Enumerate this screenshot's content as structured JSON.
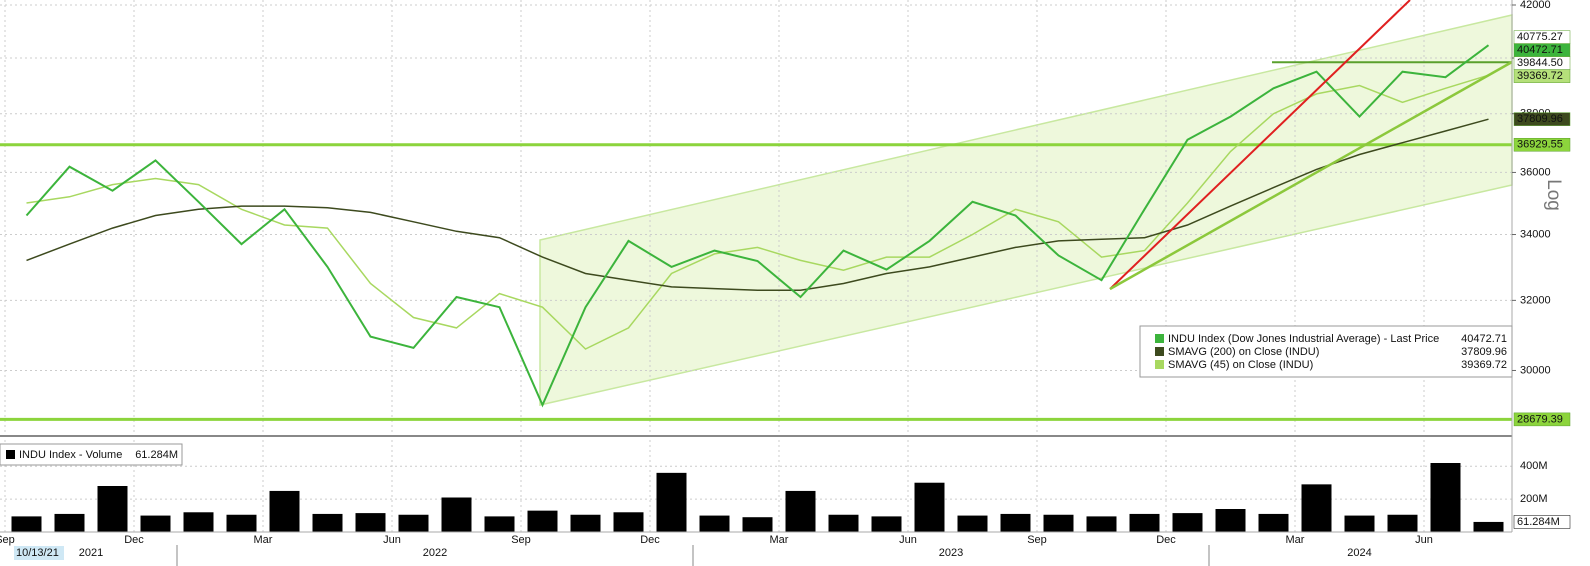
{
  "chart_data": [
    {
      "type": "line",
      "log_scale": true,
      "grid": true,
      "x": [
        "2021-09",
        "2021-10",
        "2021-11",
        "2021-12",
        "2022-01",
        "2022-02",
        "2022-03",
        "2022-04",
        "2022-05",
        "2022-06",
        "2022-07",
        "2022-08",
        "2022-09",
        "2022-10",
        "2022-11",
        "2022-12",
        "2023-01",
        "2023-02",
        "2023-03",
        "2023-04",
        "2023-05",
        "2023-06",
        "2023-07",
        "2023-08",
        "2023-09",
        "2023-10",
        "2023-11",
        "2023-12",
        "2024-01",
        "2024-02",
        "2024-03",
        "2024-04",
        "2024-05",
        "2024-06",
        "2024-07"
      ],
      "series": [
        {
          "name": "INDU Index (Dow Jones Industrial Average) - Last Price",
          "color": "#3cb43c",
          "label_bg": "#3cb43c",
          "label_fg": "#000000",
          "values": [
            34600,
            36190,
            35400,
            36400,
            35040,
            33700,
            34800,
            33000,
            30950,
            30630,
            32100,
            31800,
            29060,
            31800,
            33800,
            33000,
            33500,
            33180,
            32100,
            33500,
            32920,
            33800,
            35040,
            34600,
            33350,
            32600,
            34800,
            37100,
            37900,
            38900,
            39500,
            37900,
            39500,
            39300,
            40472.71
          ]
        },
        {
          "name": "SMAVG (200)  on Close (INDU)",
          "color": "#3d4a1e",
          "label_bg": "#3d4a1e",
          "label_fg": "#ffffff",
          "values": [
            33200,
            33700,
            34200,
            34600,
            34800,
            34900,
            34900,
            34850,
            34700,
            34400,
            34100,
            33900,
            33300,
            32800,
            32600,
            32400,
            32350,
            32300,
            32300,
            32500,
            32800,
            33000,
            33300,
            33600,
            33800,
            33850,
            33900,
            34300,
            34900,
            35500,
            36100,
            36600,
            37000,
            37400,
            37809.96
          ]
        },
        {
          "name": "SMAVG (45)  on Close (INDU)",
          "color": "#a8d860",
          "label_bg": "#b5e07a",
          "label_fg": "#000000",
          "values": [
            35000,
            35200,
            35600,
            35800,
            35600,
            34800,
            34300,
            34200,
            32500,
            31500,
            31200,
            32200,
            31800,
            30600,
            31200,
            32800,
            33400,
            33600,
            33200,
            32900,
            33300,
            33300,
            34000,
            34800,
            34400,
            33300,
            33500,
            35000,
            36700,
            38000,
            38700,
            39000,
            38400,
            38900,
            39369.72
          ]
        }
      ],
      "ylim": [
        28400,
        42000
      ],
      "yticks": [
        30000,
        32000,
        34000,
        36000,
        38000,
        40000,
        42000
      ],
      "y_axis_label": "Log",
      "levels": [
        {
          "value": 40775.27,
          "label": "40775.27",
          "line": "none",
          "label_bg": "#ffffff",
          "label_fg": "#0aa6b8"
        },
        {
          "value": 39844.5,
          "label": "39844.50",
          "line": "short",
          "label_bg": "#ffffff",
          "label_fg": "#000000"
        },
        {
          "value": 36929.55,
          "label": "36929.55",
          "line": "full",
          "label_bg": "#8cd43c",
          "label_fg": "#000000"
        },
        {
          "value": 28679.39,
          "label": "28679.39",
          "line": "full",
          "label_bg": "#8cd43c",
          "label_fg": "#000000"
        }
      ],
      "xticks": [
        {
          "value": "2021-09",
          "label": "Sep"
        },
        {
          "value": "2021-12",
          "label": "Dec"
        },
        {
          "value": "2022-03",
          "label": "Mar"
        },
        {
          "value": "2022-06",
          "label": "Jun"
        },
        {
          "value": "2022-09",
          "label": "Sep"
        },
        {
          "value": "2022-12",
          "label": "Dec"
        },
        {
          "value": "2023-03",
          "label": "Mar"
        },
        {
          "value": "2023-06",
          "label": "Jun"
        },
        {
          "value": "2023-09",
          "label": "Sep"
        },
        {
          "value": "2023-12",
          "label": "Dec"
        },
        {
          "value": "2024-03",
          "label": "Mar"
        },
        {
          "value": "2024-06",
          "label": "Jun"
        }
      ],
      "year_labels": [
        "2021",
        "2022",
        "2023",
        "2024"
      ],
      "cursor_date": "10/13/21"
    },
    {
      "type": "bar",
      "name": "INDU Index - Volume",
      "color": "#000000",
      "values": [
        95000000,
        110000000,
        280000000,
        100000000,
        120000000,
        105000000,
        250000000,
        110000000,
        115000000,
        105000000,
        210000000,
        95000000,
        130000000,
        105000000,
        120000000,
        360000000,
        100000000,
        90000000,
        250000000,
        105000000,
        95000000,
        300000000,
        100000000,
        110000000,
        105000000,
        95000000,
        110000000,
        115000000,
        140000000,
        110000000,
        290000000,
        100000000,
        105000000,
        420000000,
        61284000
      ],
      "last_value_label": "61.284M",
      "ylim": [
        0,
        560000000
      ],
      "yticks": [
        {
          "value": 200000000,
          "label": "200M"
        },
        {
          "value": 400000000,
          "label": "400M"
        }
      ]
    }
  ]
}
